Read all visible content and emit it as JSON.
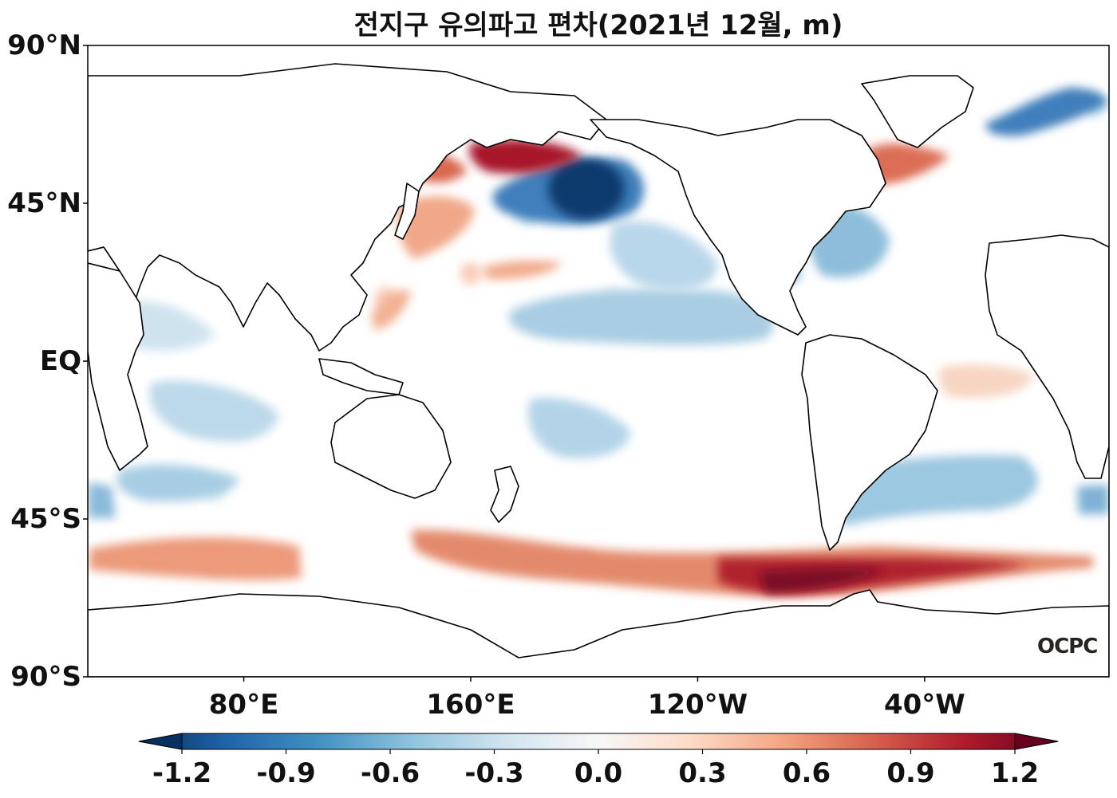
{
  "title": "전지구 유의파고 편차(2021년 12월, m)",
  "lat_ticks": [
    {
      "label": "90°N",
      "lat": 90
    },
    {
      "label": "45°N",
      "lat": 45
    },
    {
      "label": "EQ",
      "lat": 0
    },
    {
      "label": "45°S",
      "lat": -45
    },
    {
      "label": "90°S",
      "lat": -90
    }
  ],
  "lon_ticks": [
    {
      "label": "80°E",
      "lon": 80
    },
    {
      "label": "160°E",
      "lon": 160
    },
    {
      "label": "120°W",
      "lon": 240
    },
    {
      "label": "40°W",
      "lon": 320
    }
  ],
  "colorbar": {
    "min": -1.2,
    "max": 1.2,
    "ticks": [
      "-1.2",
      "-0.9",
      "-0.6",
      "-0.3",
      "0.0",
      "0.3",
      "0.6",
      "0.9",
      "1.2"
    ],
    "colors": [
      "#053061",
      "#2166ac",
      "#4393c3",
      "#92c5de",
      "#d1e5f0",
      "#f7f7f7",
      "#fddbc7",
      "#f4a582",
      "#d6604d",
      "#b2182b",
      "#67001f"
    ],
    "extend": "both"
  },
  "watermark": "OCPC",
  "map_extent": {
    "lon_min": 25,
    "lon_max": 385,
    "lat_min": -90,
    "lat_max": 90
  },
  "anomaly_regions": [
    {
      "name": "north-pacific-negative-core",
      "lon": 192,
      "lat": 45,
      "value": -1.2
    },
    {
      "name": "north-pacific-negative",
      "lon": 180,
      "lat": 42,
      "value": -0.6
    },
    {
      "name": "bering-sea-positive",
      "lon": 178,
      "lat": 58,
      "value": 1.0
    },
    {
      "name": "sea-of-okhotsk-positive",
      "lon": 148,
      "lat": 56,
      "value": 0.6
    },
    {
      "name": "northwest-pacific-positive",
      "lon": 142,
      "lat": 40,
      "value": 0.45
    },
    {
      "name": "central-north-pacific-positive",
      "lon": 160,
      "lat": 25,
      "value": 0.45
    },
    {
      "name": "philippine-sea-positive",
      "lon": 130,
      "lat": 18,
      "value": 0.45
    },
    {
      "name": "labrador-sea-positive",
      "lon": 310,
      "lat": 56,
      "value": 0.75
    },
    {
      "name": "northwest-atlantic-negative",
      "lon": 292,
      "lat": 32,
      "value": -0.4
    },
    {
      "name": "east-pacific-negative",
      "lon": 210,
      "lat": 18,
      "value": -0.35
    },
    {
      "name": "barents-sea-negative",
      "lon": 380,
      "lat": 73,
      "value": -0.6
    },
    {
      "name": "tropical-atlantic-positive",
      "lon": 336,
      "lat": -5,
      "value": 0.25
    },
    {
      "name": "south-atlantic-negative",
      "lon": 340,
      "lat": -38,
      "value": -0.35
    },
    {
      "name": "south-indian-negative",
      "lon": 70,
      "lat": -37,
      "value": -0.3
    },
    {
      "name": "indian-ocean-negative",
      "lon": 80,
      "lat": -18,
      "value": -0.3
    },
    {
      "name": "south-pacific-negative",
      "lon": 195,
      "lat": -22,
      "value": -0.3
    },
    {
      "name": "southern-ocean-positive-indian",
      "lon": 70,
      "lat": -57,
      "value": 0.6
    },
    {
      "name": "southern-ocean-positive-pacific",
      "lon": 200,
      "lat": -58,
      "value": 0.6
    },
    {
      "name": "southern-ocean-positive-drake",
      "lon": 290,
      "lat": -62,
      "value": 1.0
    }
  ]
}
